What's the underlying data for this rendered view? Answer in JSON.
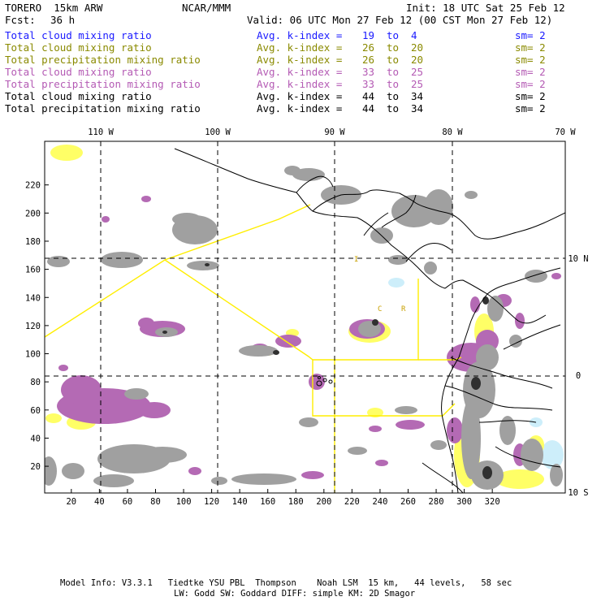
{
  "header": {
    "model": "TORERO  15km ARW",
    "center": "NCAR/MMM",
    "init": "Init: 18 UTC Sat 25 Feb 12",
    "fcst_label": "Fcst:",
    "fcst_value": "36 h",
    "valid": "Valid: 06 UTC Mon 27 Feb 12 (00 CST Mon 27 Feb 12)"
  },
  "legend": [
    {
      "name": "Total cloud mixing ratio",
      "k_label": "Avg. k-index =",
      "k_from": "19",
      "to": "to",
      "k_to": "4",
      "sm": "sm= 2",
      "color": "#1a1aff"
    },
    {
      "name": "Total cloud mixing ratio",
      "k_label": "Avg. k-index =",
      "k_from": "26",
      "to": "to",
      "k_to": "20",
      "sm": "sm= 2",
      "color": "#8a8a00"
    },
    {
      "name": "Total precipitation mixing ratio",
      "k_label": "Avg. k-index =",
      "k_from": "26",
      "to": "to",
      "k_to": "20",
      "sm": "sm= 2",
      "color": "#8a8a00"
    },
    {
      "name": "Total cloud mixing ratio",
      "k_label": "Avg. k-index =",
      "k_from": "33",
      "to": "to",
      "k_to": "25",
      "sm": "sm= 2",
      "color": "#b45ab4"
    },
    {
      "name": "Total precipitation mixing ratio",
      "k_label": "Avg. k-index =",
      "k_from": "33",
      "to": "to",
      "k_to": "25",
      "sm": "sm= 2",
      "color": "#b45ab4"
    },
    {
      "name": "Total cloud mixing ratio",
      "k_label": "Avg. k-index =",
      "k_from": "44",
      "to": "to",
      "k_to": "34",
      "sm": "sm= 2",
      "color": "#000000"
    },
    {
      "name": "Total precipitation mixing ratio",
      "k_label": "Avg. k-index =",
      "k_from": "44",
      "to": "to",
      "k_to": "34",
      "sm": "sm= 2",
      "color": "#000000"
    }
  ],
  "axes": {
    "bottom_ticks": [
      "20",
      "40",
      "60",
      "80",
      "100",
      "120",
      "140",
      "160",
      "180",
      "200",
      "220",
      "240",
      "260",
      "280",
      "300",
      "320"
    ],
    "left_ticks": [
      "20",
      "40",
      "60",
      "80",
      "100",
      "120",
      "140",
      "160",
      "180",
      "200",
      "220"
    ],
    "top_lon": [
      "110 W",
      "100 W",
      "90 W",
      "80 W",
      "70 W"
    ],
    "right_lat": [
      "10 N",
      "0",
      "10 S"
    ]
  },
  "map_labels": {
    "c": "C",
    "r": "R",
    "i": "I"
  },
  "colors": {
    "cloud": "#a0a0a0",
    "precip": "#b46ab4",
    "yellow": "#ffff66",
    "boundary": "#ffee00",
    "gridline": "#000000"
  },
  "footer": {
    "line1": "Model Info: V3.3.1   Tiedtke YSU PBL  Thompson    Noah LSM  15 km,   44 levels,   58 sec",
    "line2": "LW: Godd SW: Goddard DIFF: simple KM: 2D Smagor"
  }
}
